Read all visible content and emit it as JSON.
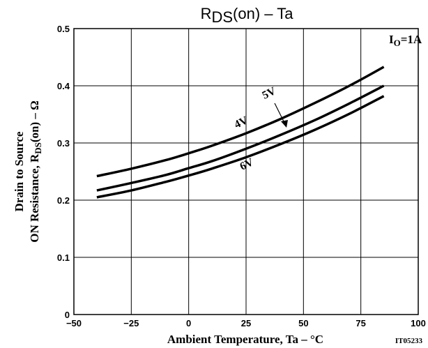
{
  "chart_data": {
    "type": "line",
    "title_main": "R",
    "title_sub": "DS",
    "title_rest": "(on)  –  Ta",
    "xlabel": "Ambient Temperature, Ta  –  °C",
    "ylabel_line1": "Drain to Source",
    "ylabel_line2_pre": "ON Resistance, R",
    "ylabel_line2_sub": "DS",
    "ylabel_line2_post": "(on)  –  Ω",
    "condition_main": "I",
    "condition_sub": "O",
    "condition_rest": "=1A",
    "part_code": "IT05233",
    "xlim": [
      -50,
      100
    ],
    "ylim": [
      0,
      0.5
    ],
    "x_ticks": [
      -50,
      -25,
      0,
      25,
      50,
      75,
      100
    ],
    "x_tick_labels": [
      "−50",
      "−25",
      "0",
      "25",
      "50",
      "75",
      "100"
    ],
    "y_ticks": [
      0,
      0.1,
      0.2,
      0.3,
      0.4,
      0.5
    ],
    "y_tick_labels": [
      "0",
      "0.1",
      "0.2",
      "0.3",
      "0.4",
      "0.5"
    ],
    "grid": true,
    "series": [
      {
        "name": "4V",
        "x": [
          -40,
          -25,
          -10,
          0,
          10,
          25,
          40,
          55,
          70,
          85
        ],
        "y": [
          0.242,
          0.255,
          0.27,
          0.282,
          0.295,
          0.317,
          0.342,
          0.37,
          0.4,
          0.433
        ]
      },
      {
        "name": "5V",
        "x": [
          -40,
          -25,
          -10,
          0,
          10,
          25,
          40,
          55,
          70,
          85
        ],
        "y": [
          0.217,
          0.23,
          0.244,
          0.256,
          0.268,
          0.29,
          0.314,
          0.34,
          0.369,
          0.4
        ]
      },
      {
        "name": "6V",
        "x": [
          -40,
          -25,
          -10,
          0,
          10,
          25,
          40,
          55,
          70,
          85
        ],
        "y": [
          0.205,
          0.217,
          0.232,
          0.243,
          0.255,
          0.275,
          0.298,
          0.323,
          0.351,
          0.382
        ]
      }
    ]
  }
}
